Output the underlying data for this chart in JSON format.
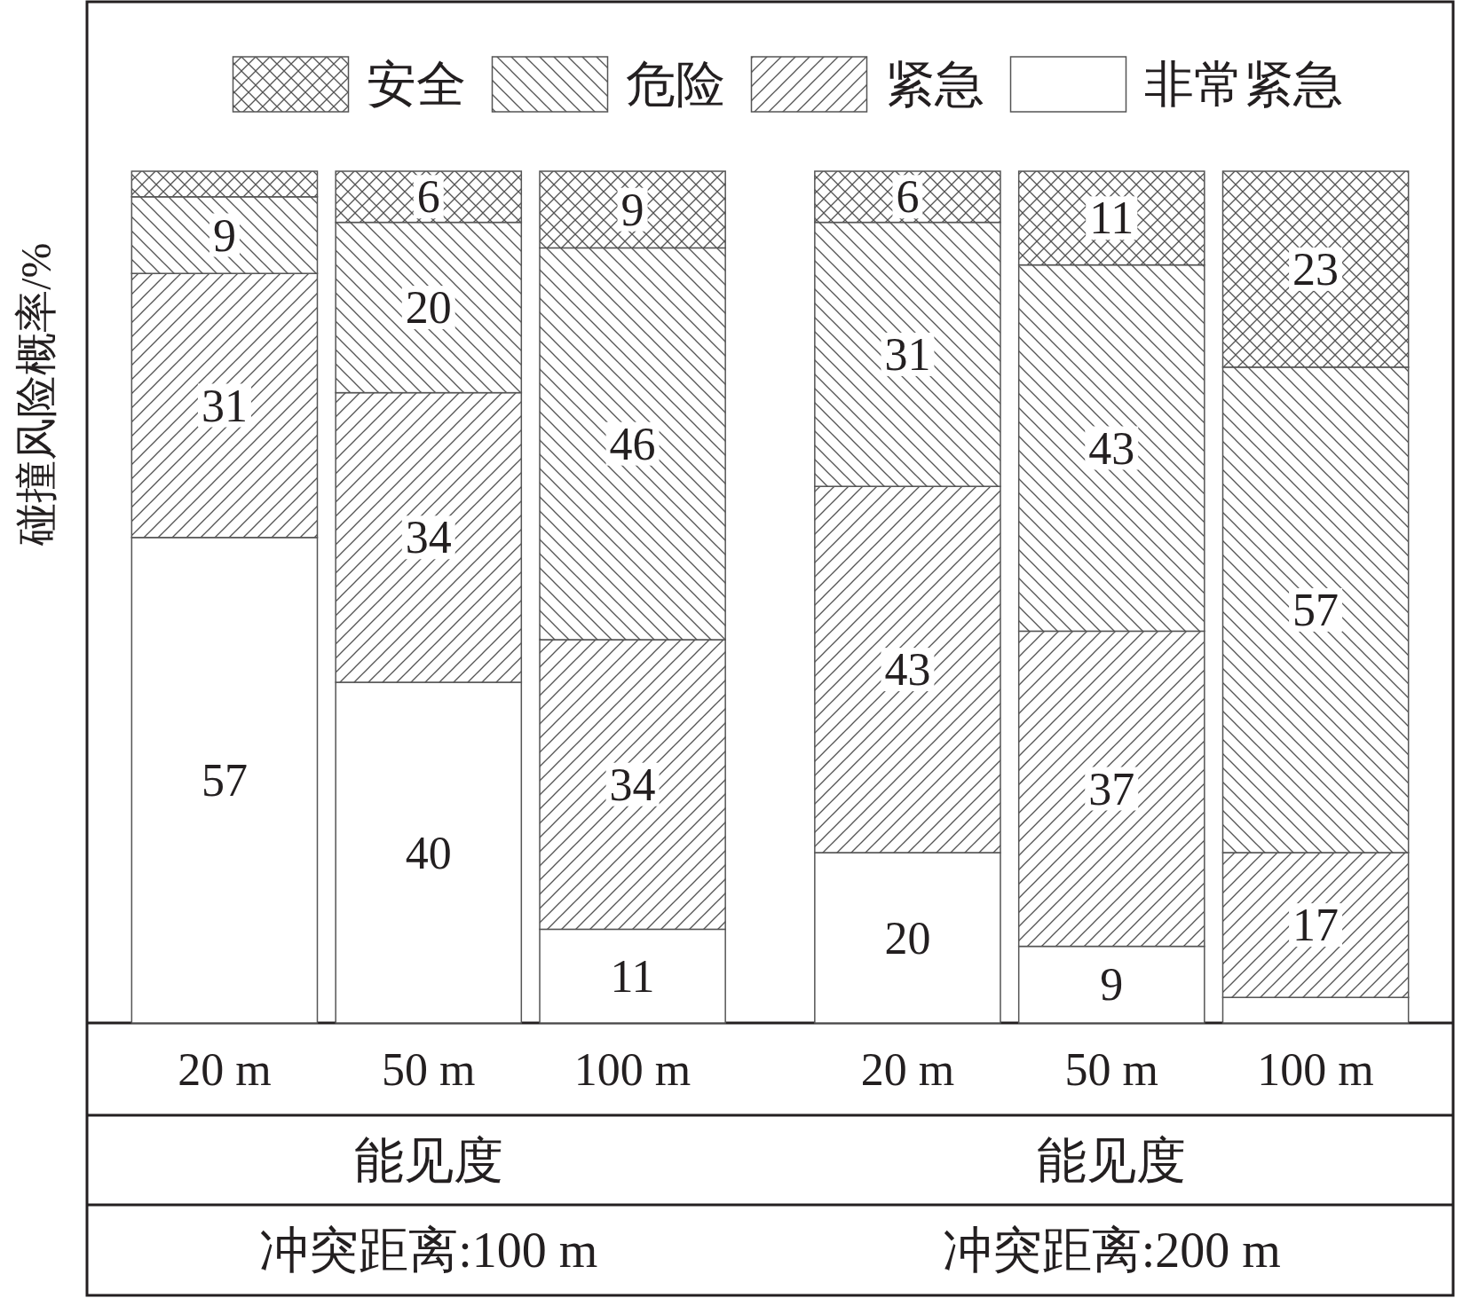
{
  "chart_data": [
    {
      "type": "bar",
      "stacked": true,
      "categories": [
        "20 m",
        "50 m",
        "100 m"
      ],
      "ylabel": "碰撞风险概率/%",
      "xlabel": "能见度",
      "annotations": [
        "冲突距离:100 m"
      ],
      "ylim": [
        0,
        100
      ],
      "tick_labels": "x",
      "legend": "top",
      "series": [
        {
          "name": "非常紧急",
          "color": "#ffffff",
          "values": [
            57,
            40,
            11
          ],
          "value_labels": [
            "57",
            "40",
            "11"
          ]
        },
        {
          "name": "紧急",
          "color": "#555555",
          "values": [
            31,
            34,
            34
          ],
          "value_labels": [
            "31",
            "34",
            "34"
          ]
        },
        {
          "name": "危险",
          "color": "#555555",
          "values": [
            9,
            20,
            46
          ],
          "value_labels": [
            "9",
            "20",
            "46"
          ]
        },
        {
          "name": "安全",
          "color": "#555555",
          "values": [
            3,
            6,
            9
          ],
          "value_labels": [
            null,
            "6",
            "9"
          ]
        }
      ]
    },
    {
      "type": "bar",
      "stacked": true,
      "categories": [
        "20 m",
        "50 m",
        "100 m"
      ],
      "xlabel": "能见度",
      "annotations": [
        "冲突距离:200 m"
      ],
      "ylim": [
        0,
        100
      ],
      "tick_labels": "x",
      "series": [
        {
          "color": "#ffffff",
          "values": [
            20,
            9,
            3
          ],
          "value_labels": [
            "20",
            "9",
            null
          ]
        },
        {
          "color": "#555555",
          "values": [
            43,
            37,
            17
          ],
          "value_labels": [
            "43",
            "37",
            "17"
          ]
        },
        {
          "color": "#555555",
          "values": [
            31,
            43,
            57
          ],
          "value_labels": [
            "31",
            "43",
            "57"
          ]
        },
        {
          "color": "#555555",
          "values": [
            6,
            11,
            23
          ],
          "value_labels": [
            "6",
            "11",
            "23"
          ]
        }
      ]
    }
  ]
}
